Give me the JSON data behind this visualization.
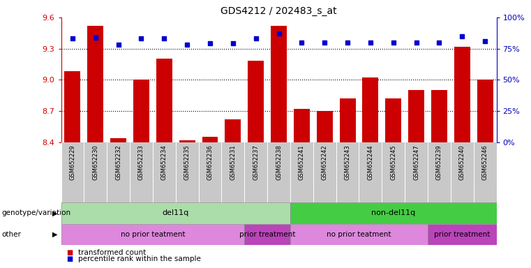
{
  "title": "GDS4212 / 202483_s_at",
  "samples": [
    "GSM652229",
    "GSM652230",
    "GSM652232",
    "GSM652233",
    "GSM652234",
    "GSM652235",
    "GSM652236",
    "GSM652231",
    "GSM652237",
    "GSM652238",
    "GSM652241",
    "GSM652242",
    "GSM652243",
    "GSM652244",
    "GSM652245",
    "GSM652247",
    "GSM652239",
    "GSM652240",
    "GSM652246"
  ],
  "bar_values": [
    9.08,
    9.52,
    8.44,
    9.0,
    9.2,
    8.42,
    8.45,
    8.62,
    9.18,
    9.52,
    8.72,
    8.7,
    8.82,
    9.02,
    8.82,
    8.9,
    8.9,
    9.32,
    9.0
  ],
  "dot_values": [
    83,
    84,
    78,
    83,
    83,
    78,
    79,
    79,
    83,
    87,
    80,
    80,
    80,
    80,
    80,
    80,
    80,
    85,
    81
  ],
  "bar_color": "#cc0000",
  "dot_color": "#0000cc",
  "ylim_left": [
    8.4,
    9.6
  ],
  "ylim_right": [
    0,
    100
  ],
  "yticks_left": [
    8.4,
    8.7,
    9.0,
    9.3,
    9.6
  ],
  "yticks_right": [
    0,
    25,
    50,
    75,
    100
  ],
  "ytick_labels_right": [
    "0%",
    "25%",
    "50%",
    "75%",
    "100%"
  ],
  "grid_values": [
    8.7,
    9.0,
    9.3
  ],
  "annotation_row1_label": "genotype/variation",
  "annotation_row2_label": "other",
  "annotation_groups_row1": [
    {
      "label": "del11q",
      "start": 0,
      "end": 9,
      "color": "#aaddaa"
    },
    {
      "label": "non-del11q",
      "start": 10,
      "end": 18,
      "color": "#44cc44"
    }
  ],
  "annotation_groups_row2": [
    {
      "label": "no prior teatment",
      "start": 0,
      "end": 7,
      "color": "#dd88dd"
    },
    {
      "label": "prior treatment",
      "start": 8,
      "end": 9,
      "color": "#bb44bb"
    },
    {
      "label": "no prior teatment",
      "start": 10,
      "end": 15,
      "color": "#dd88dd"
    },
    {
      "label": "prior treatment",
      "start": 16,
      "end": 18,
      "color": "#bb44bb"
    }
  ],
  "legend_bar_label": "transformed count",
  "legend_dot_label": "percentile rank within the sample",
  "background_color": "#ffffff",
  "xtick_bg_color": "#c8c8c8",
  "bar_width": 0.7
}
